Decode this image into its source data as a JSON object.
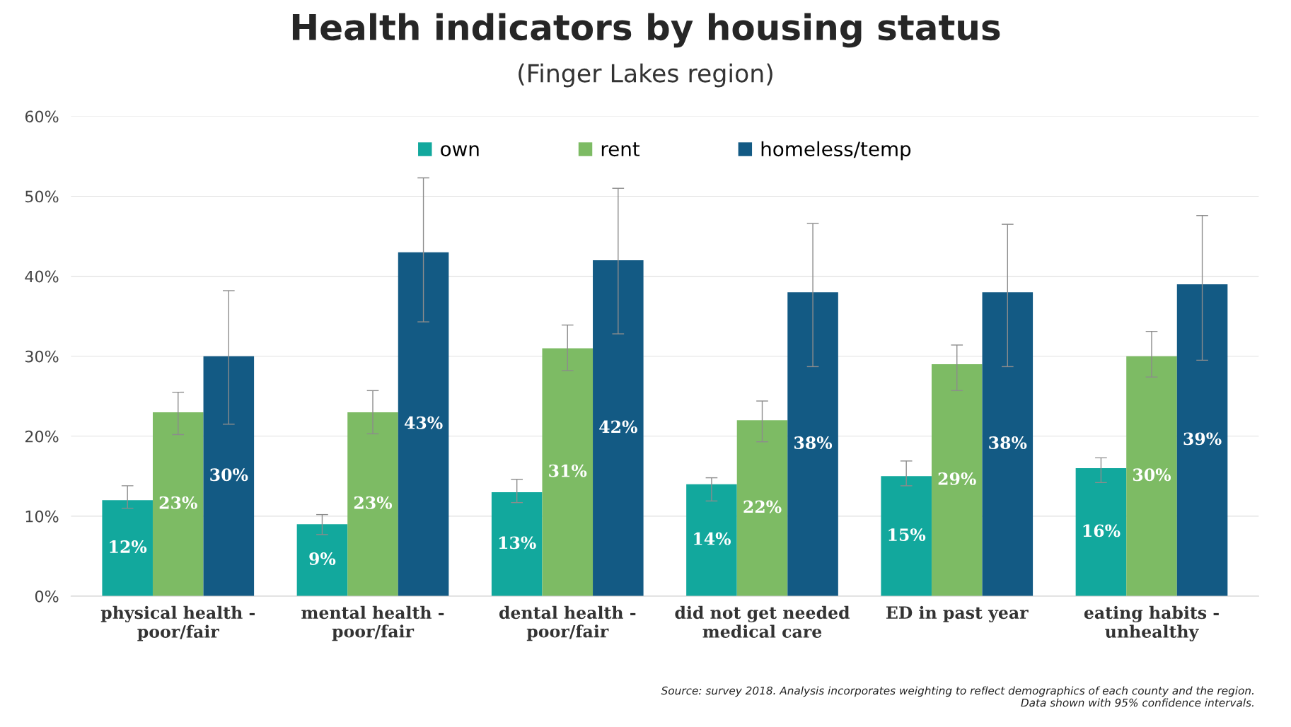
{
  "chart_data": {
    "type": "bar",
    "title": "Health indicators by housing status",
    "subtitle": "(Finger Lakes region)",
    "categories": [
      "physical health -\npoor/fair",
      "mental health -\npoor/fair",
      "dental health -\npoor/fair",
      "did not get needed\nmedical care",
      "ED in past year",
      "eating habits -\nunhealthy"
    ],
    "series": [
      {
        "name": "own",
        "color": "#12a89d",
        "values": [
          12,
          9,
          13,
          14,
          15,
          16
        ],
        "value_labels": [
          "12%",
          "9%",
          "13%",
          "14%",
          "15%",
          "16%"
        ],
        "errors": [
          [
            11.0,
            13.8
          ],
          [
            7.7,
            10.2
          ],
          [
            11.7,
            14.6
          ],
          [
            11.9,
            14.8
          ],
          [
            13.8,
            16.9
          ],
          [
            14.2,
            17.3
          ]
        ]
      },
      {
        "name": "rent",
        "color": "#7dbb64",
        "values": [
          23,
          23,
          31,
          22,
          29,
          30
        ],
        "value_labels": [
          "23%",
          "23%",
          "31%",
          "22%",
          "29%",
          "30%"
        ],
        "errors": [
          [
            20.2,
            25.5
          ],
          [
            20.3,
            25.7
          ],
          [
            28.2,
            33.9
          ],
          [
            19.3,
            24.4
          ],
          [
            25.7,
            31.4
          ],
          [
            27.4,
            33.1
          ]
        ]
      },
      {
        "name": "homeless/temp",
        "color": "#135a84",
        "values": [
          30,
          43,
          42,
          38,
          38,
          39
        ],
        "value_labels": [
          "30%",
          "43%",
          "42%",
          "38%",
          "38%",
          "39%"
        ],
        "errors": [
          [
            21.5,
            38.2
          ],
          [
            34.3,
            52.3
          ],
          [
            32.8,
            51.0
          ],
          [
            28.7,
            46.6
          ],
          [
            28.7,
            46.5
          ],
          [
            29.5,
            47.6
          ]
        ]
      }
    ],
    "ylim": [
      0,
      60
    ],
    "yticks": [
      {
        "value": 0,
        "label": "0%"
      },
      {
        "value": 10,
        "label": "10%"
      },
      {
        "value": 20,
        "label": "20%"
      },
      {
        "value": 30,
        "label": "30%"
      },
      {
        "value": 40,
        "label": "40%"
      },
      {
        "value": 50,
        "label": "50%"
      },
      {
        "value": 60,
        "label": "60%"
      }
    ],
    "grid": "y",
    "legend": "top",
    "annotations": [
      "Source: survey 2018. Analysis incorporates weighting to reflect demographics of each county and the region.\nData shown with 95% confidence intervals."
    ]
  }
}
